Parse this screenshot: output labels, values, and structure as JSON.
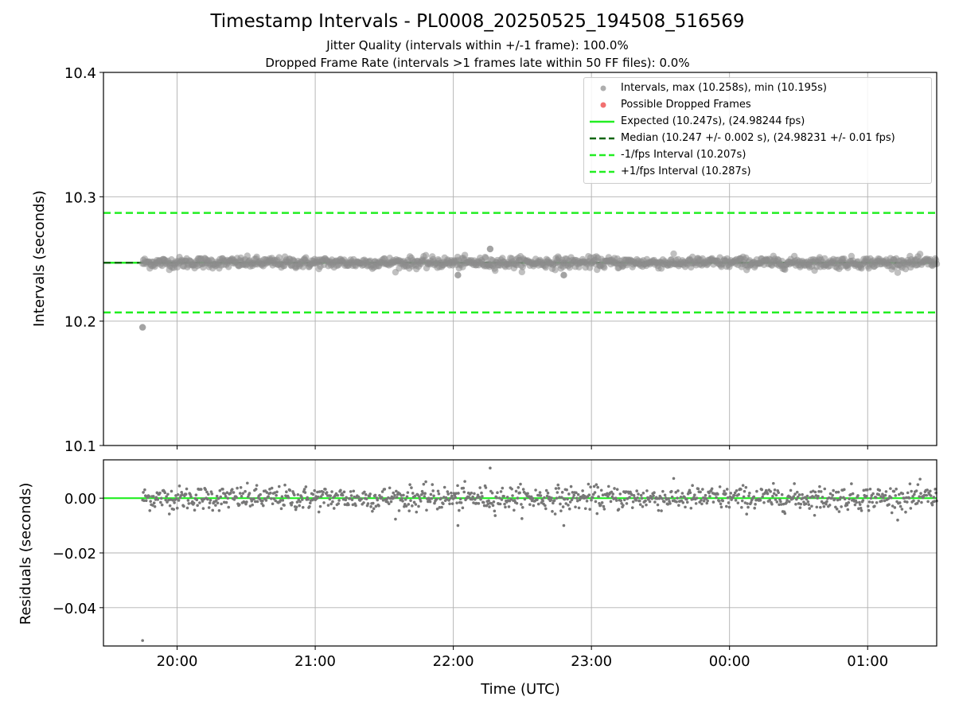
{
  "window": {
    "title": "Timestamp Intervals - PL0008_20250525_194508_516569",
    "subtitle_jitter": "Jitter Quality (intervals within +/-1 frame): 100.0%",
    "subtitle_dropped": "Dropped Frame Rate (intervals >1 frames late within 50 FF files): 0.0%"
  },
  "chart_data": [
    {
      "type": "scatter",
      "panel": "top",
      "title": "Timestamp Intervals - PL0008_20250525_194508_516569",
      "xlabel": "",
      "ylabel": "Intervals (seconds)",
      "ylim": [
        10.1,
        10.4
      ],
      "yticks": [
        "10.1",
        "10.2",
        "10.3",
        "10.4"
      ],
      "xlim": [
        "19:28",
        "01:30"
      ],
      "grid": true,
      "legend_position": "top-right",
      "series": [
        {
          "name": "Intervals, max (10.258s), min (10.195s)",
          "kind": "scatter",
          "color": "#8c8c8c",
          "summary": {
            "max": 10.258,
            "min": 10.195,
            "center": 10.247,
            "spread": 0.002,
            "start": "19:45",
            "end": "01:30"
          },
          "notable_points": [
            {
              "x": "19:45",
              "y": 10.195
            },
            {
              "x": "22:16",
              "y": 10.258
            },
            {
              "x": "22:02",
              "y": 10.237
            },
            {
              "x": "22:48",
              "y": 10.237
            }
          ]
        },
        {
          "name": "Possible Dropped Frames",
          "kind": "scatter",
          "color": "#f06060",
          "points": []
        },
        {
          "name": "Expected (10.247s), (24.98244 fps)",
          "kind": "hline",
          "y": 10.247,
          "color": "#22ee22",
          "style": "solid"
        },
        {
          "name": "Median (10.247 +/- 0.002 s), (24.98231 +/- 0.01 fps)",
          "kind": "hline",
          "y": 10.247,
          "color": "#116611",
          "style": "dashed"
        },
        {
          "name": "-1/fps Interval (10.207s)",
          "kind": "hline",
          "y": 10.207,
          "color": "#22ee22",
          "style": "dashed"
        },
        {
          "name": "+1/fps Interval (10.287s)",
          "kind": "hline",
          "y": 10.287,
          "color": "#22ee22",
          "style": "dashed"
        }
      ]
    },
    {
      "type": "scatter",
      "panel": "bottom",
      "xlabel": "Time (UTC)",
      "ylabel": "Residuals (seconds)",
      "ylim": [
        -0.054,
        0.014
      ],
      "yticks": [
        "0.00",
        "−0.02",
        "−0.04"
      ],
      "xticks": [
        "20:00",
        "21:00",
        "22:00",
        "23:00",
        "00:00",
        "01:00"
      ],
      "grid": true,
      "series": [
        {
          "name": "Residuals",
          "kind": "scatter",
          "color": "#777777",
          "summary": {
            "max": 0.011,
            "min": -0.052,
            "spread": 0.002
          },
          "notable_points": [
            {
              "x": "19:45",
              "y": -0.052
            },
            {
              "x": "22:16",
              "y": 0.011
            },
            {
              "x": "22:02",
              "y": -0.01
            },
            {
              "x": "22:48",
              "y": -0.01
            }
          ]
        },
        {
          "name": "Zero",
          "kind": "hline",
          "y": 0.0,
          "color": "#22ee22",
          "style": "solid"
        }
      ]
    }
  ]
}
